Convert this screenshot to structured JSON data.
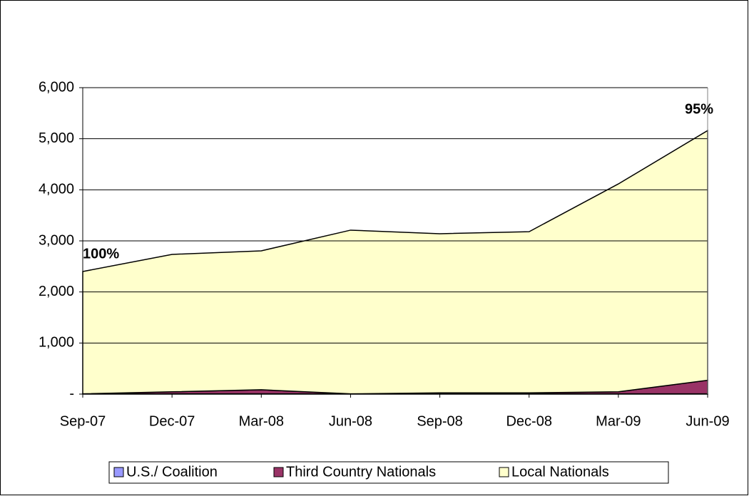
{
  "chart_data": {
    "type": "stacked_area",
    "categories": [
      "Sep-07",
      "Dec-07",
      "Mar-08",
      "Jun-08",
      "Sep-08",
      "Dec-08",
      "Mar-09",
      "Jun-09"
    ],
    "series": [
      {
        "name": "U.S./ Coalition",
        "color": "#9999ff",
        "values": [
          5,
          5,
          5,
          5,
          5,
          5,
          5,
          5
        ]
      },
      {
        "name": "Third Country Nationals",
        "color": "#993366",
        "values": [
          0,
          40,
          80,
          0,
          20,
          20,
          40,
          265
        ]
      },
      {
        "name": "Local Nationals",
        "color": "#ffffcc",
        "values": [
          2395,
          2690,
          2720,
          3205,
          3115,
          3155,
          4070,
          4890
        ]
      }
    ],
    "ylim": [
      0,
      6000
    ],
    "yticks": [
      {
        "value": 0,
        "label": "-"
      },
      {
        "value": 1000,
        "label": "1,000"
      },
      {
        "value": 2000,
        "label": "2,000"
      },
      {
        "value": 3000,
        "label": "3,000"
      },
      {
        "value": 4000,
        "label": "4,000"
      },
      {
        "value": 5000,
        "label": "5,000"
      },
      {
        "value": 6000,
        "label": "6,000"
      }
    ],
    "grid": true,
    "legend": "bottom",
    "annotations": [
      "100%",
      "95%"
    ]
  }
}
